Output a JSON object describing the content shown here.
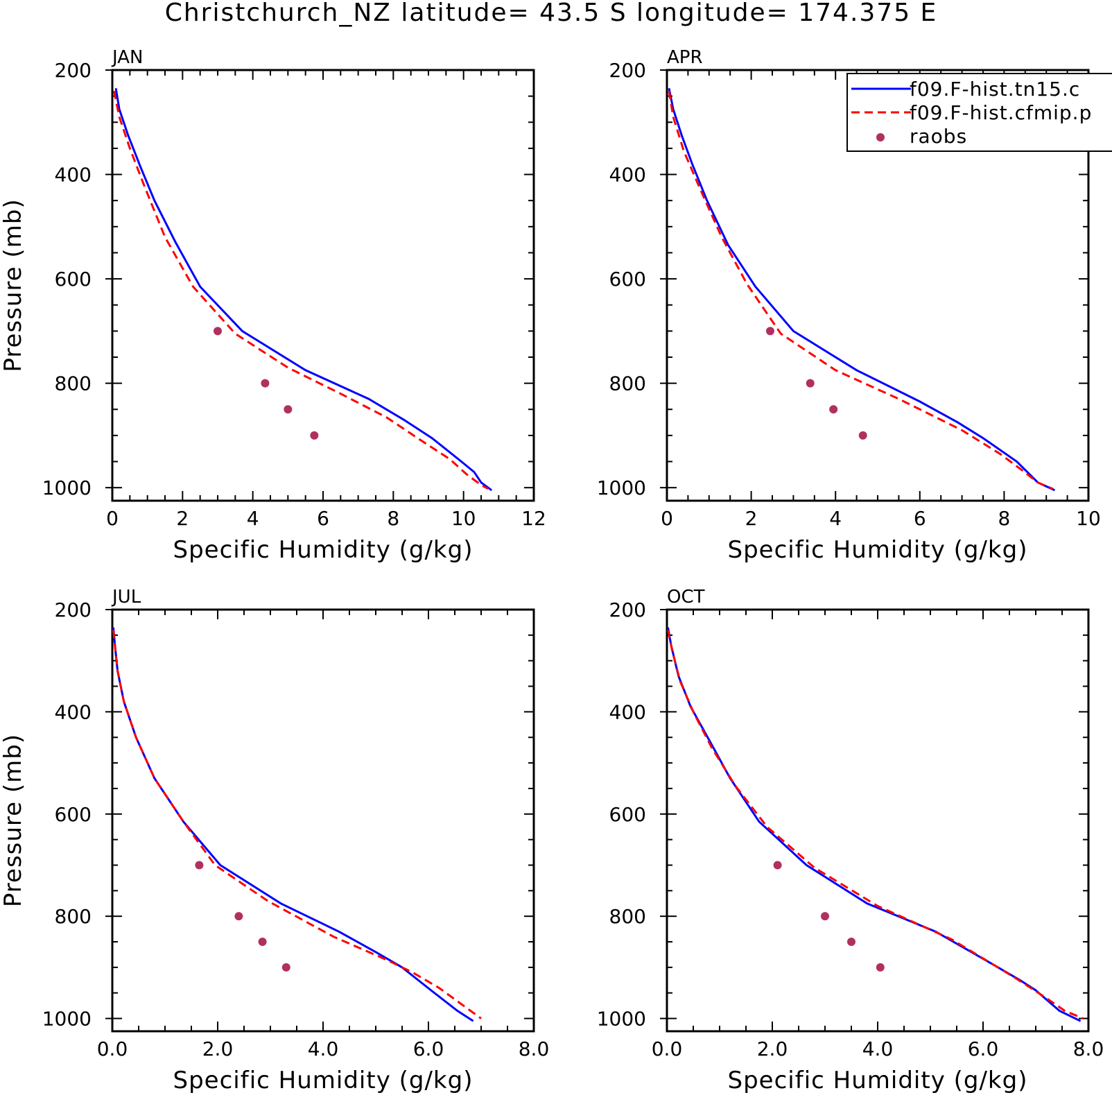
{
  "title": "Christchurch_NZ  latitude= 43.5 S longitude= 174.375 E",
  "legend": {
    "entries": [
      {
        "label": "f09.F-hist.tn15.c",
        "style": "solid",
        "color": "#0000ff"
      },
      {
        "label": "f09.F-hist.cfmip.p",
        "style": "dashed",
        "color": "#ff0000"
      },
      {
        "label": "raobs",
        "style": "dot",
        "color": "#b03060"
      }
    ]
  },
  "colors": {
    "model_a": "#0000ff",
    "model_b": "#ff0000",
    "raobs": "#b03060",
    "axes": "#000000"
  },
  "chart_data": [
    {
      "type": "line",
      "panel": "JAN",
      "xlabel": "Specific Humidity (g/kg)",
      "ylabel": "Pressure (mb)",
      "xlim": [
        0,
        12
      ],
      "ylim": [
        200,
        1000
      ],
      "y_inverted": true,
      "xticks": [
        "0",
        "2",
        "4",
        "6",
        "8",
        "10",
        "12"
      ],
      "yticks": [
        "200",
        "400",
        "600",
        "800",
        "1000"
      ],
      "series": [
        {
          "name": "f09.F-hist.tn15.c",
          "style": "solid",
          "points": [
            [
              0.1,
              235
            ],
            [
              0.2,
              275
            ],
            [
              0.45,
              325
            ],
            [
              0.8,
              385
            ],
            [
              1.2,
              450
            ],
            [
              1.8,
              530
            ],
            [
              2.5,
              615
            ],
            [
              3.7,
              700
            ],
            [
              5.5,
              775
            ],
            [
              7.3,
              830
            ],
            [
              8.3,
              870
            ],
            [
              9.1,
              905
            ],
            [
              9.9,
              948
            ],
            [
              10.3,
              970
            ],
            [
              10.5,
              990
            ],
            [
              10.8,
              1005
            ]
          ]
        },
        {
          "name": "f09.F-hist.cfmip.p",
          "style": "dashed",
          "points": [
            [
              0.05,
              240
            ],
            [
              0.2,
              290
            ],
            [
              0.5,
              350
            ],
            [
              0.9,
              420
            ],
            [
              1.5,
              520
            ],
            [
              2.3,
              615
            ],
            [
              3.5,
              705
            ],
            [
              5.0,
              770
            ],
            [
              6.5,
              820
            ],
            [
              7.8,
              865
            ],
            [
              8.8,
              910
            ],
            [
              9.6,
              945
            ],
            [
              10.1,
              975
            ],
            [
              10.5,
              995
            ],
            [
              10.7,
              1002
            ]
          ]
        },
        {
          "name": "raobs",
          "style": "dot",
          "points": [
            [
              3.0,
              700
            ],
            [
              4.35,
              800
            ],
            [
              5.0,
              850
            ],
            [
              5.75,
              900
            ]
          ]
        }
      ]
    },
    {
      "type": "line",
      "panel": "APR",
      "xlabel": "Specific Humidity (g/kg)",
      "ylabel": "",
      "xlim": [
        0,
        10
      ],
      "ylim": [
        200,
        1000
      ],
      "y_inverted": true,
      "xticks": [
        "0",
        "2",
        "4",
        "6",
        "8",
        "10"
      ],
      "yticks": [
        "200",
        "400",
        "600",
        "800",
        "1000"
      ],
      "series": [
        {
          "name": "f09.F-hist.tn15.c",
          "style": "solid",
          "points": [
            [
              0.05,
              235
            ],
            [
              0.15,
              275
            ],
            [
              0.35,
              325
            ],
            [
              0.6,
              380
            ],
            [
              0.95,
              450
            ],
            [
              1.45,
              535
            ],
            [
              2.1,
              615
            ],
            [
              3.0,
              700
            ],
            [
              4.5,
              775
            ],
            [
              6.0,
              835
            ],
            [
              6.9,
              875
            ],
            [
              7.5,
              905
            ],
            [
              8.3,
              950
            ],
            [
              8.8,
              990
            ],
            [
              9.2,
              1005
            ]
          ]
        },
        {
          "name": "f09.F-hist.cfmip.p",
          "style": "dashed",
          "points": [
            [
              0.05,
              240
            ],
            [
              0.15,
              290
            ],
            [
              0.4,
              355
            ],
            [
              0.8,
              430
            ],
            [
              1.3,
              520
            ],
            [
              1.9,
              610
            ],
            [
              2.7,
              705
            ],
            [
              4.0,
              775
            ],
            [
              5.5,
              830
            ],
            [
              7.0,
              890
            ],
            [
              7.9,
              935
            ],
            [
              8.4,
              965
            ],
            [
              8.8,
              990
            ],
            [
              9.15,
              1002
            ]
          ]
        },
        {
          "name": "raobs",
          "style": "dot",
          "points": [
            [
              2.45,
              700
            ],
            [
              3.4,
              800
            ],
            [
              3.95,
              850
            ],
            [
              4.65,
              900
            ]
          ]
        }
      ]
    },
    {
      "type": "line",
      "panel": "JUL",
      "xlabel": "Specific Humidity (g/kg)",
      "ylabel": "Pressure (mb)",
      "xlim": [
        0,
        8
      ],
      "ylim": [
        200,
        1000
      ],
      "y_inverted": true,
      "xticks": [
        "0.0",
        "2.0",
        "4.0",
        "6.0",
        "8.0"
      ],
      "yticks": [
        "200",
        "400",
        "600",
        "800",
        "1000"
      ],
      "series": [
        {
          "name": "f09.F-hist.tn15.c",
          "style": "solid",
          "points": [
            [
              0.02,
              235
            ],
            [
              0.05,
              270
            ],
            [
              0.1,
              320
            ],
            [
              0.22,
              380
            ],
            [
              0.45,
              450
            ],
            [
              0.8,
              530
            ],
            [
              1.35,
              615
            ],
            [
              2.05,
              700
            ],
            [
              3.2,
              775
            ],
            [
              4.3,
              830
            ],
            [
              5.0,
              870
            ],
            [
              5.5,
              900
            ],
            [
              6.05,
              945
            ],
            [
              6.55,
              985
            ],
            [
              6.85,
              1005
            ]
          ]
        },
        {
          "name": "f09.F-hist.cfmip.p",
          "style": "dashed",
          "points": [
            [
              0.02,
              240
            ],
            [
              0.05,
              270
            ],
            [
              0.1,
              320
            ],
            [
              0.22,
              380
            ],
            [
              0.45,
              450
            ],
            [
              0.8,
              530
            ],
            [
              1.35,
              615
            ],
            [
              1.95,
              700
            ],
            [
              2.95,
              770
            ],
            [
              4.2,
              840
            ],
            [
              5.2,
              885
            ],
            [
              5.7,
              910
            ],
            [
              6.2,
              940
            ],
            [
              6.6,
              970
            ],
            [
              7.0,
              1000
            ]
          ]
        },
        {
          "name": "raobs",
          "style": "dot",
          "points": [
            [
              1.65,
              700
            ],
            [
              2.4,
              800
            ],
            [
              2.85,
              850
            ],
            [
              3.3,
              900
            ]
          ]
        }
      ]
    },
    {
      "type": "line",
      "panel": "OCT",
      "xlabel": "Specific Humidity (g/kg)",
      "ylabel": "",
      "xlim": [
        0,
        8
      ],
      "ylim": [
        200,
        1000
      ],
      "y_inverted": true,
      "xticks": [
        "0.0",
        "2.0",
        "4.0",
        "6.0",
        "8.0"
      ],
      "yticks": [
        "200",
        "400",
        "600",
        "800",
        "1000"
      ],
      "series": [
        {
          "name": "f09.F-hist.tn15.c",
          "style": "solid",
          "points": [
            [
              0.02,
              235
            ],
            [
              0.08,
              270
            ],
            [
              0.22,
              330
            ],
            [
              0.45,
              390
            ],
            [
              0.8,
              455
            ],
            [
              1.2,
              530
            ],
            [
              1.75,
              615
            ],
            [
              2.65,
              700
            ],
            [
              3.8,
              775
            ],
            [
              5.1,
              830
            ],
            [
              6.2,
              895
            ],
            [
              6.7,
              925
            ],
            [
              7.0,
              945
            ],
            [
              7.45,
              985
            ],
            [
              7.85,
              1005
            ]
          ]
        },
        {
          "name": "f09.F-hist.cfmip.p",
          "style": "dashed",
          "points": [
            [
              0.02,
              240
            ],
            [
              0.1,
              280
            ],
            [
              0.25,
              340
            ],
            [
              0.5,
              400
            ],
            [
              0.85,
              470
            ],
            [
              1.3,
              545
            ],
            [
              1.9,
              625
            ],
            [
              2.8,
              705
            ],
            [
              4.0,
              780
            ],
            [
              5.4,
              845
            ],
            [
              6.6,
              920
            ],
            [
              7.2,
              960
            ],
            [
              7.55,
              985
            ],
            [
              7.9,
              1000
            ]
          ]
        },
        {
          "name": "raobs",
          "style": "dot",
          "points": [
            [
              2.1,
              700
            ],
            [
              3.0,
              800
            ],
            [
              3.5,
              850
            ],
            [
              4.05,
              900
            ]
          ]
        }
      ]
    }
  ]
}
